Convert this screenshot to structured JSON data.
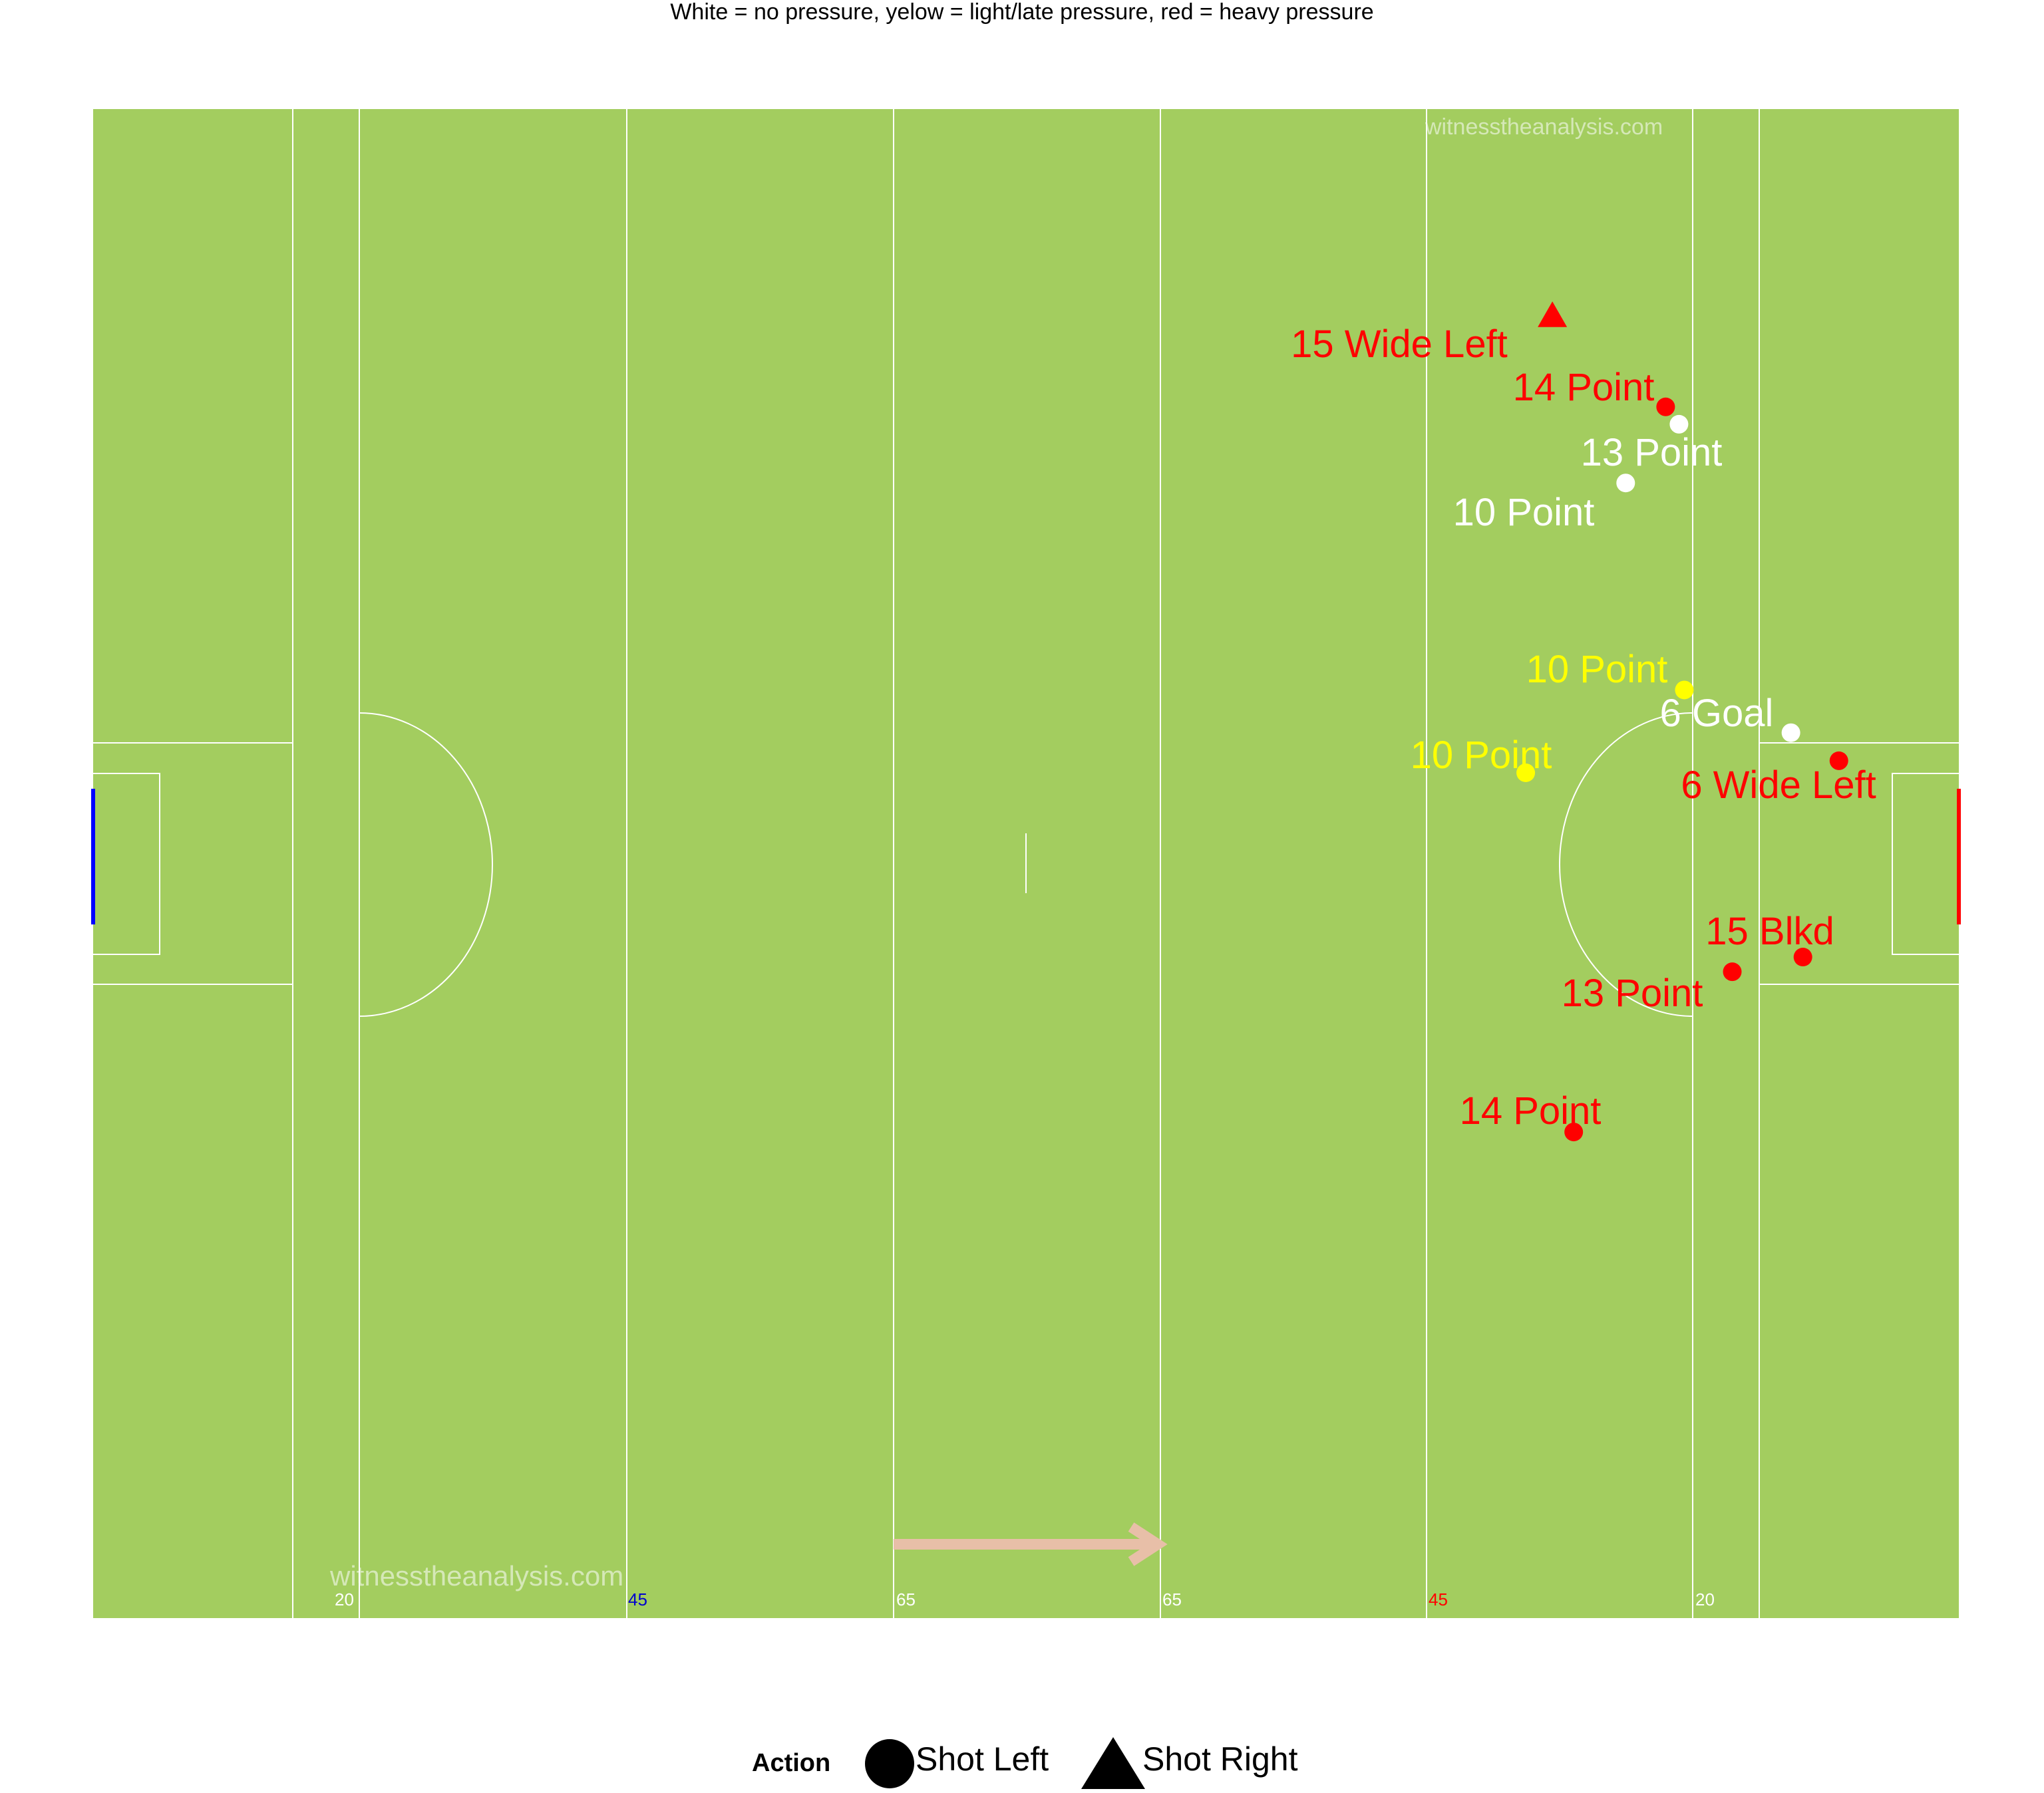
{
  "subtitle": "White = no pressure, yelow = light/late pressure, red = heavy pressure",
  "watermark": "witnesstheanalysis.com",
  "pitch": {
    "background_color": "#a3cd5f",
    "line_color": "#ffffff",
    "left_goal_color": "#0000ff",
    "right_goal_color": "#ff0000",
    "arrow_color": "#e8bfa8",
    "distance_marks": [
      {
        "text": "20",
        "color": "#ffffff"
      },
      {
        "text": "45",
        "color": "#0000cd"
      },
      {
        "text": "65",
        "color": "#ffffff"
      },
      {
        "text": "65",
        "color": "#ffffff"
      },
      {
        "text": "45",
        "color": "#ff0000"
      },
      {
        "text": "20",
        "color": "#ffffff"
      }
    ]
  },
  "legend": {
    "title": "Action",
    "items": [
      {
        "label": "Shot Left",
        "shape": "circle-icon"
      },
      {
        "label": "Shot Right",
        "shape": "triangle-icon"
      }
    ]
  },
  "chart_data": {
    "type": "scatter",
    "title": "",
    "subtitle": "White = no pressure, yelow = light/late pressure, red = heavy pressure",
    "xlim": [
      0,
      140
    ],
    "ylim": [
      0,
      113
    ],
    "pressure_colors": {
      "none": "#ffffff",
      "light": "#ffff00",
      "heavy": "#ff0000"
    },
    "points": [
      {
        "x": 109.5,
        "y": 97.5,
        "label": "15 Wide Left",
        "pressure": "heavy",
        "action": "Shot Right"
      },
      {
        "x": 118.0,
        "y": 90.7,
        "label": "14 Point",
        "pressure": "heavy",
        "action": "Shot Left"
      },
      {
        "x": 119.0,
        "y": 89.4,
        "label": "13 Point",
        "pressure": "none",
        "action": "Shot Left"
      },
      {
        "x": 115.0,
        "y": 85.0,
        "label": "10 Point",
        "pressure": "none",
        "action": "Shot Left"
      },
      {
        "x": 119.4,
        "y": 69.5,
        "label": "10 Point",
        "pressure": "light",
        "action": "Shot Left"
      },
      {
        "x": 127.4,
        "y": 66.3,
        "label": "6 Goal",
        "pressure": "none",
        "action": "Shot Left"
      },
      {
        "x": 107.5,
        "y": 63.3,
        "label": "10 Point",
        "pressure": "light",
        "action": "Shot Left"
      },
      {
        "x": 131.0,
        "y": 64.2,
        "label": "6 Wide Left",
        "pressure": "heavy",
        "action": "Shot Left"
      },
      {
        "x": 128.3,
        "y": 49.5,
        "label": "15 Blkd",
        "pressure": "heavy",
        "action": "Shot Left"
      },
      {
        "x": 123.0,
        "y": 48.4,
        "label": "13 Point",
        "pressure": "heavy",
        "action": "Shot Left"
      },
      {
        "x": 111.1,
        "y": 36.4,
        "label": "14 Point",
        "pressure": "heavy",
        "action": "Shot Left"
      }
    ]
  }
}
